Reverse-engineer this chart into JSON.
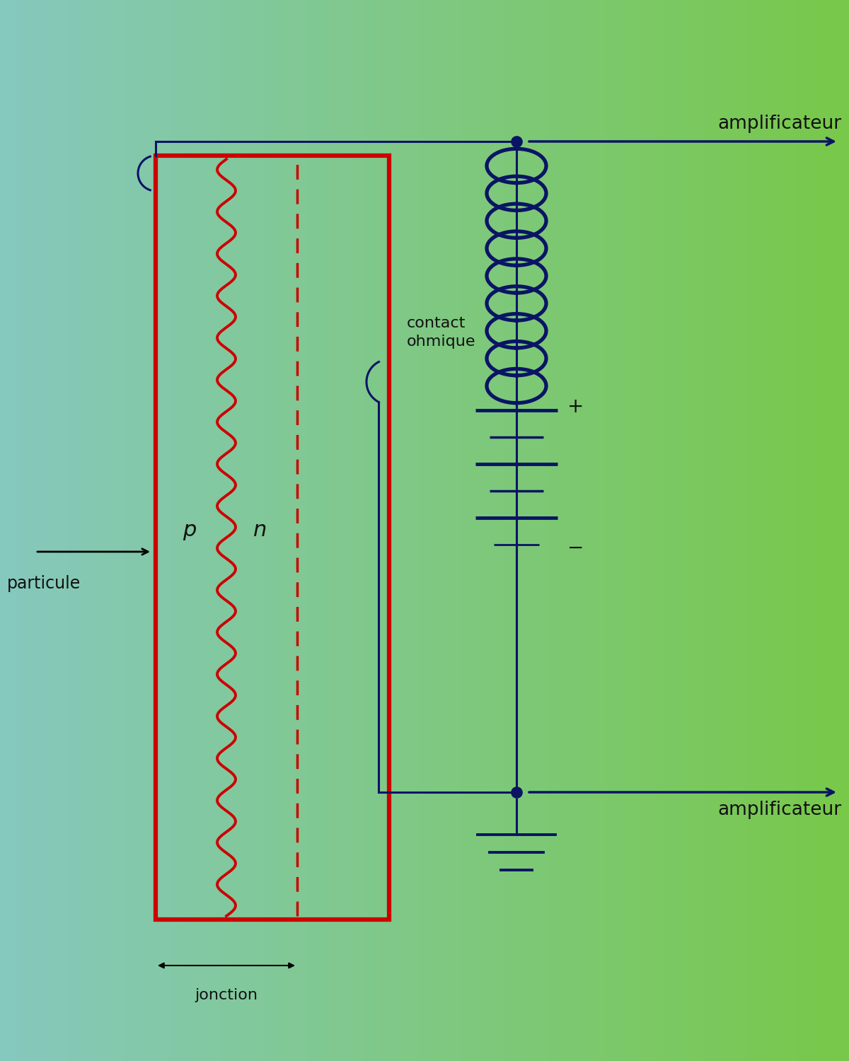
{
  "bg_color_left": "#86c8be",
  "bg_color_right": "#78c84a",
  "circuit_color": "#0a1464",
  "junction_color": "#cc0000",
  "text_color": "#0a1464",
  "text_color_black": "#111111",
  "label_p": "p",
  "label_n": "n",
  "label_particule": "particule",
  "label_jonction": "jonction",
  "label_contact": "contact\nohmique",
  "label_ampli_top": "amplificateur",
  "label_ampli_bot": "amplificateur",
  "label_plus": "+",
  "label_minus": "−"
}
